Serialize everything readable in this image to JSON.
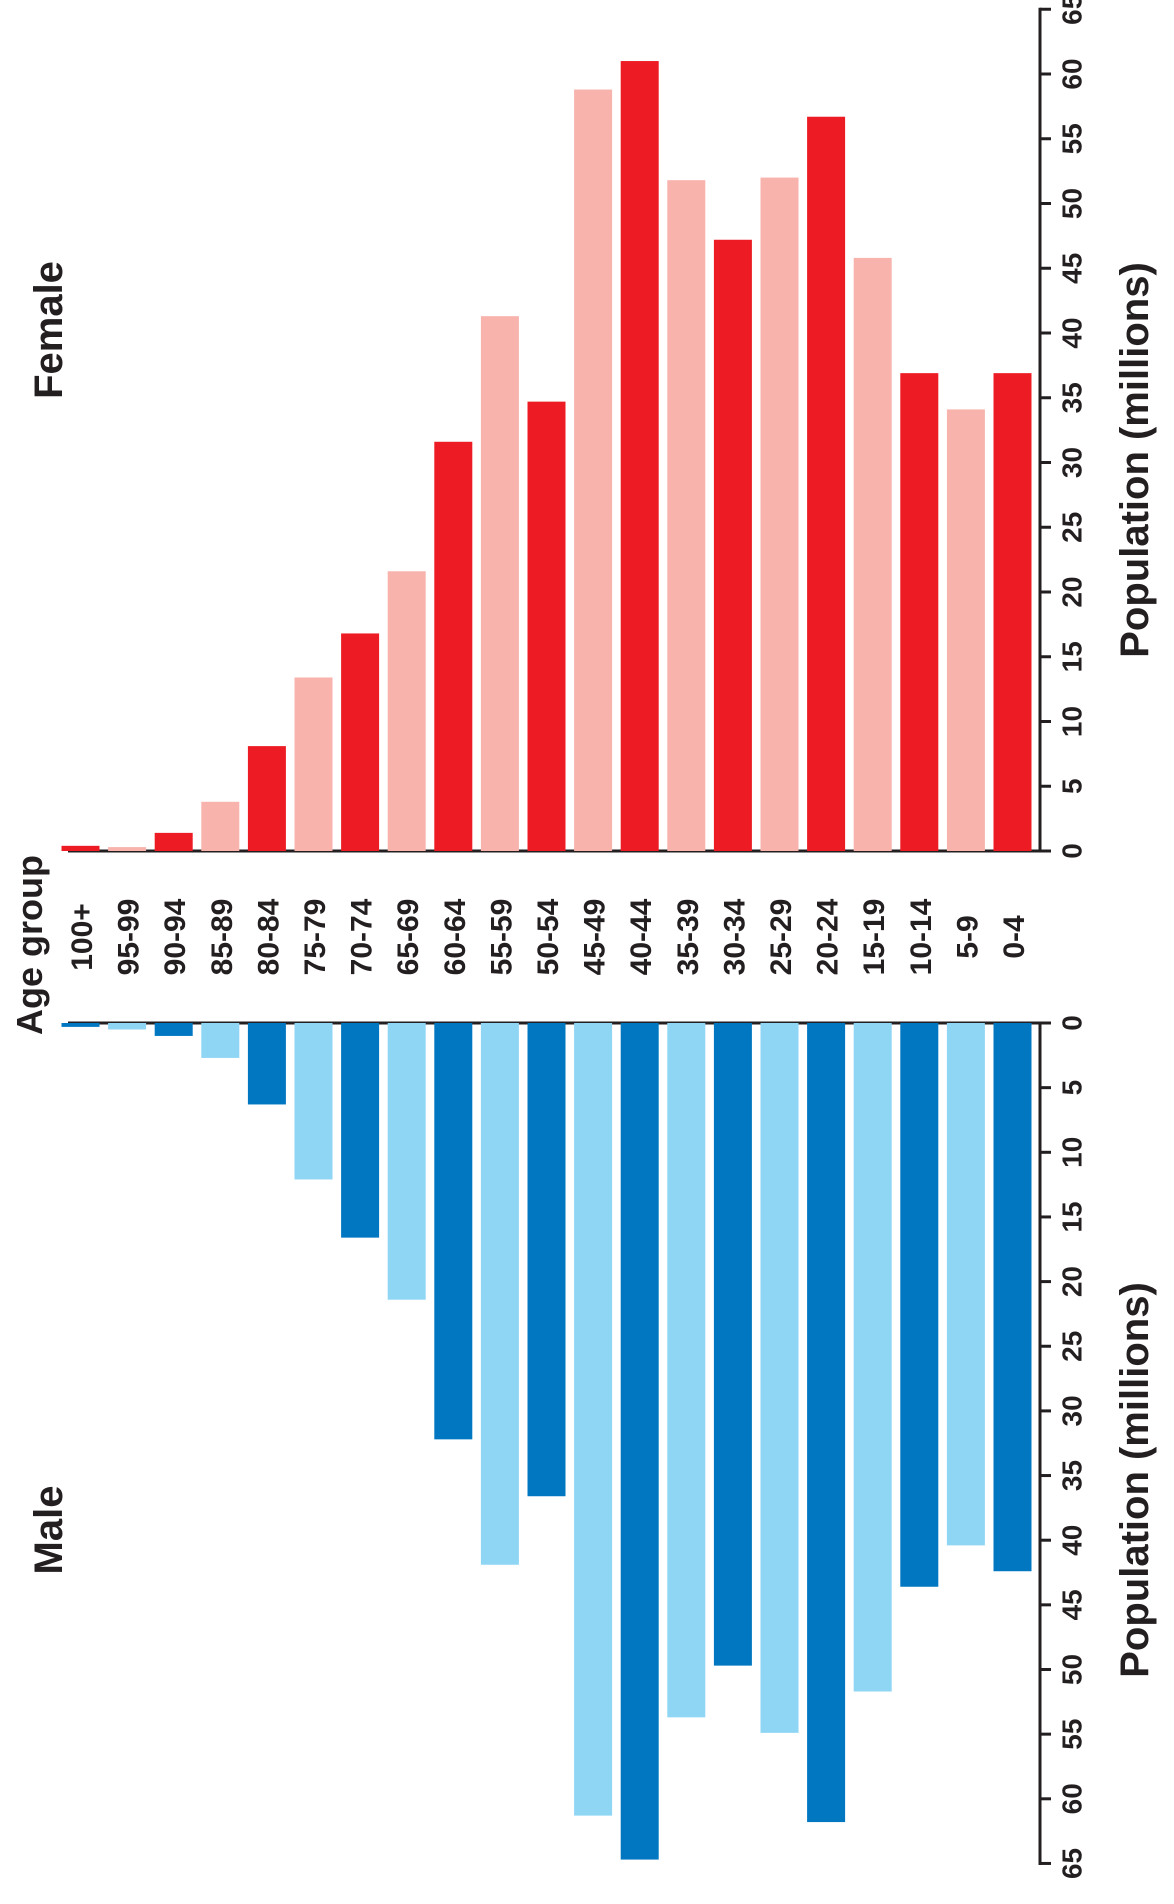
{
  "chart_data": {
    "type": "bar",
    "orientation": "population-pyramid (figure rotated 90° counter-clockwise)",
    "category_axis_label": "Age group",
    "categories": [
      "100+",
      "95-99",
      "90-94",
      "85-89",
      "80-84",
      "75-79",
      "70-74",
      "65-69",
      "60-64",
      "55-59",
      "50-54",
      "45-49",
      "40-44",
      "35-39",
      "30-34",
      "25-29",
      "20-24",
      "15-19",
      "10-14",
      "5-9",
      "0-4"
    ],
    "series": [
      {
        "name": "Female",
        "values": [
          0.4,
          0.3,
          1.4,
          3.8,
          8.1,
          13.4,
          16.8,
          21.6,
          31.6,
          41.3,
          34.7,
          58.8,
          61.0,
          51.8,
          47.2,
          52.0,
          56.7,
          45.8,
          36.9,
          34.1,
          36.9
        ],
        "colors": [
          "#ed1c24",
          "#f8b3ad"
        ],
        "axis_label": "Population (millions)",
        "range": [
          0,
          65
        ]
      },
      {
        "name": "Male",
        "values": [
          0.3,
          0.5,
          1.0,
          2.7,
          6.3,
          12.1,
          16.6,
          21.4,
          32.2,
          41.9,
          36.6,
          61.3,
          64.7,
          53.7,
          49.7,
          54.9,
          61.8,
          51.7,
          43.6,
          40.4,
          42.4
        ],
        "colors": [
          "#0077c0",
          "#8fd6f5"
        ],
        "axis_label": "Population (millions)",
        "range": [
          0,
          65
        ]
      }
    ],
    "ticks": [
      "0",
      "5",
      "10",
      "15",
      "20",
      "25",
      "30",
      "35",
      "40",
      "45",
      "50",
      "55",
      "60",
      "65"
    ],
    "tick_values": [
      0,
      5,
      10,
      15,
      20,
      25,
      30,
      35,
      40,
      45,
      50,
      55,
      60,
      65
    ],
    "grid": false,
    "legend": "none"
  }
}
